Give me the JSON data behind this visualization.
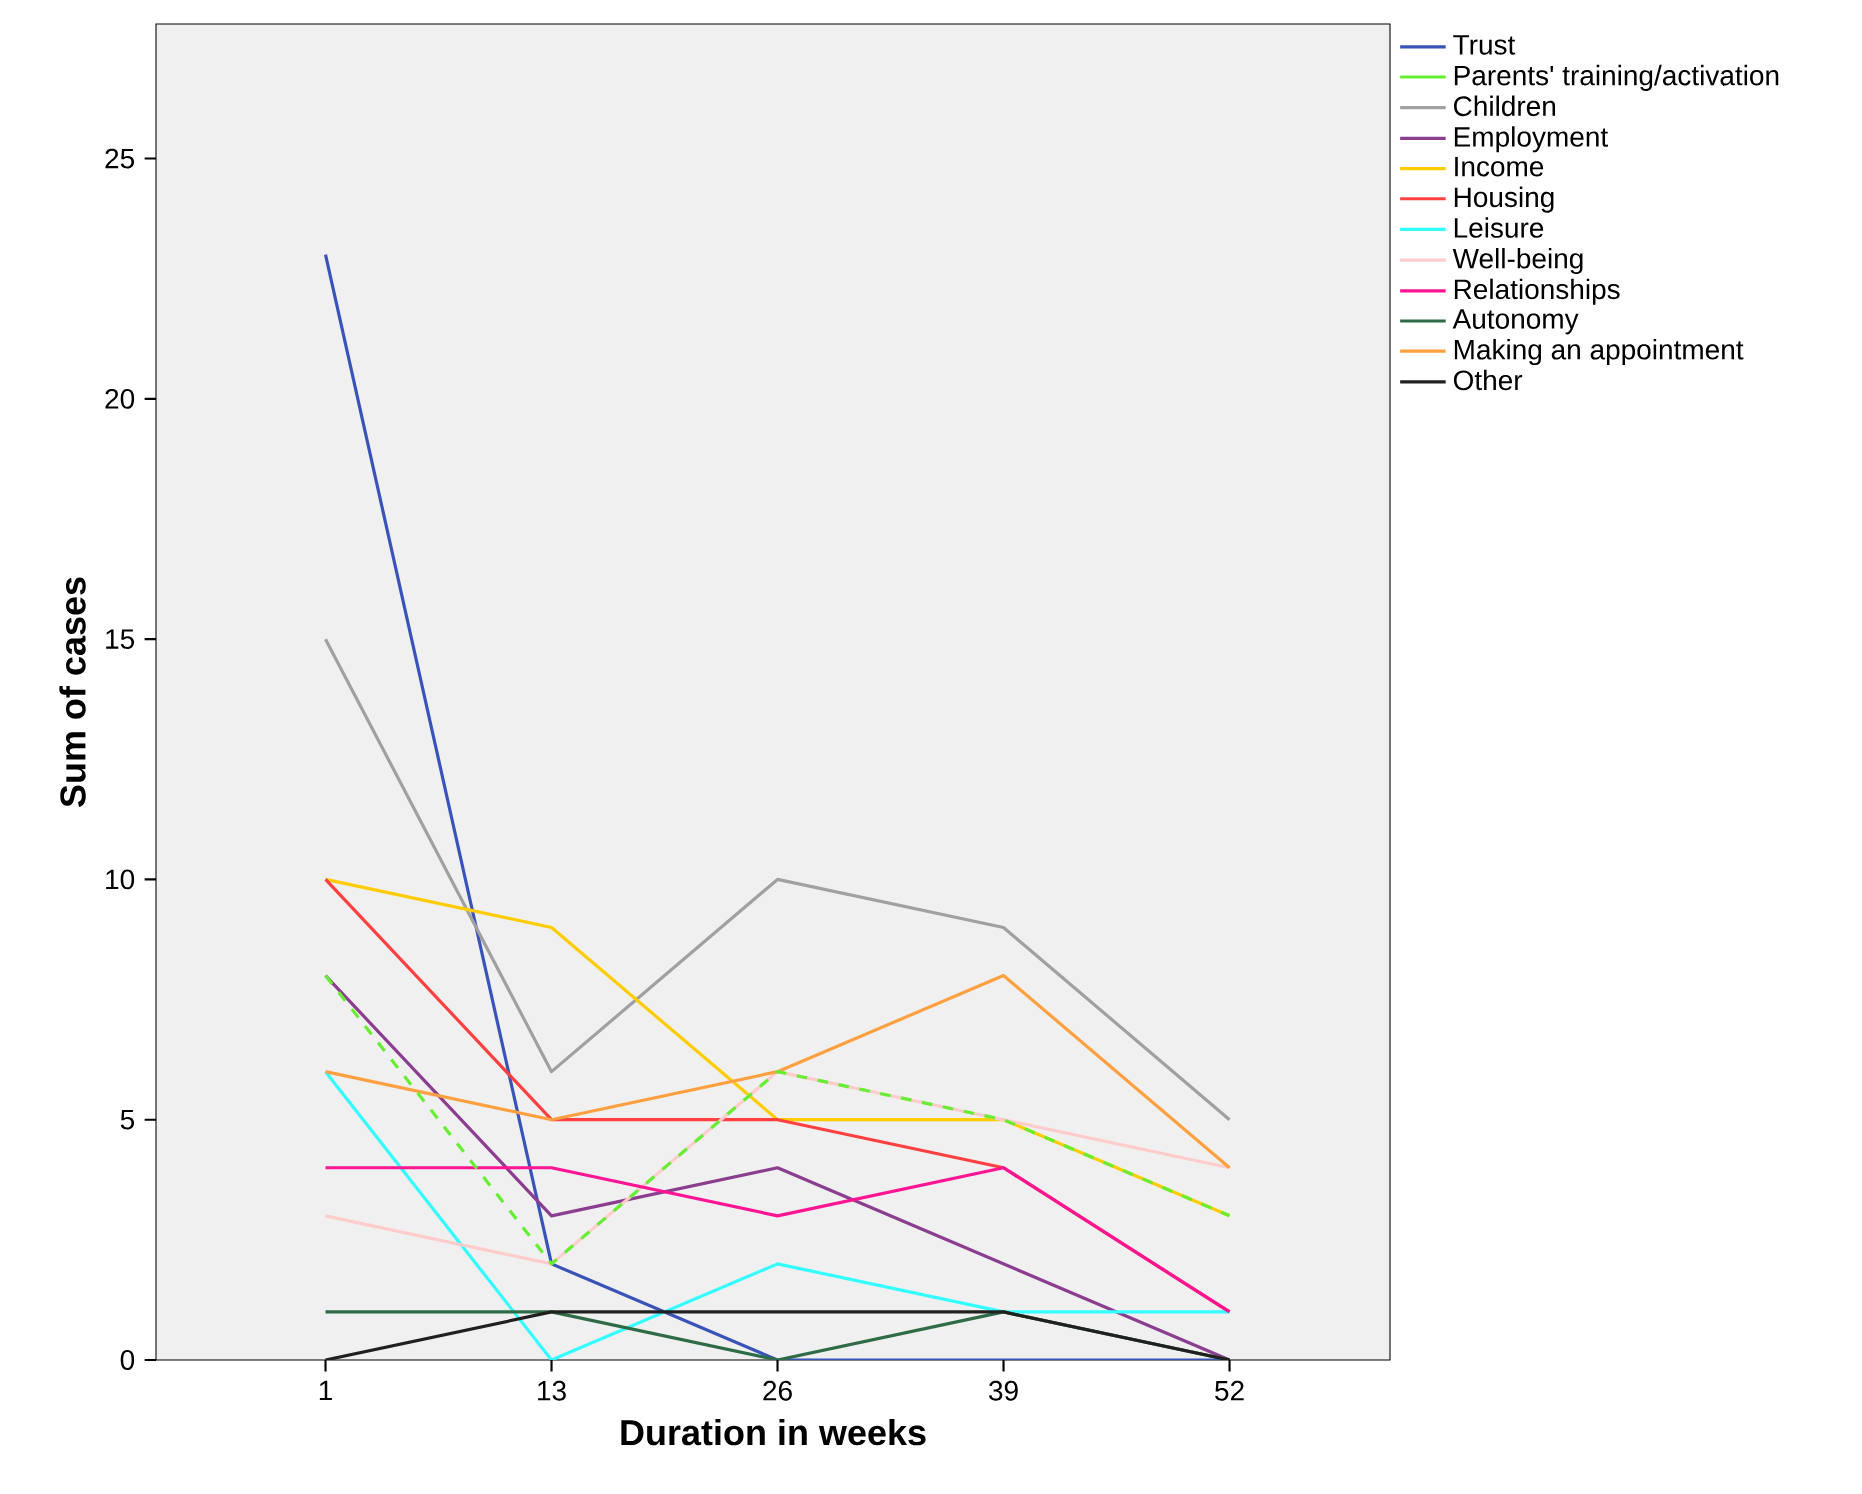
{
  "chart_data": {
    "type": "line",
    "xlabel": "Duration in weeks",
    "ylabel": "Sum of cases",
    "categories": [
      "1",
      "13",
      "26",
      "39",
      "52"
    ],
    "ylim": [
      0,
      27.8
    ],
    "yticks": [
      0,
      5,
      10,
      15,
      20,
      25
    ],
    "grid": false,
    "legend": "right",
    "marker": "none",
    "line_style": "solid",
    "series": [
      {
        "name": "Trust",
        "color": "#3953b8",
        "values": [
          23,
          2,
          0,
          0,
          0
        ]
      },
      {
        "name": "Parents' training/activation",
        "color": "#66ee33",
        "line_style": "dashed",
        "values": [
          8,
          2,
          6,
          5,
          3
        ]
      },
      {
        "name": "Children",
        "color": "#a0a0a0",
        "values": [
          15,
          6,
          10,
          9,
          5
        ]
      },
      {
        "name": "Employment",
        "color": "#8b3d8f",
        "values": [
          8,
          3,
          4,
          2,
          0
        ]
      },
      {
        "name": "Income",
        "color": "#ffcc00",
        "values": [
          10,
          9,
          5,
          5,
          3
        ]
      },
      {
        "name": "Housing",
        "color": "#ff4040",
        "values": [
          10,
          5,
          5,
          4,
          1
        ]
      },
      {
        "name": "Leisure",
        "color": "#33ffff",
        "values": [
          6,
          0,
          2,
          1,
          1
        ]
      },
      {
        "name": "Well-being",
        "color": "#ffcccc",
        "values": [
          3,
          2,
          6,
          5,
          4
        ]
      },
      {
        "name": "Relationships",
        "color": "#ff1493",
        "values": [
          4,
          4,
          3,
          4,
          1
        ]
      },
      {
        "name": "Autonomy",
        "color": "#2e6b47",
        "values": [
          1,
          1,
          0,
          1,
          0
        ]
      },
      {
        "name": "Making an appointment",
        "color": "#ffa040",
        "values": [
          6,
          5,
          6,
          8,
          4
        ]
      },
      {
        "name": "Other",
        "color": "#202020",
        "values": [
          0,
          1,
          1,
          1,
          0
        ]
      }
    ]
  }
}
